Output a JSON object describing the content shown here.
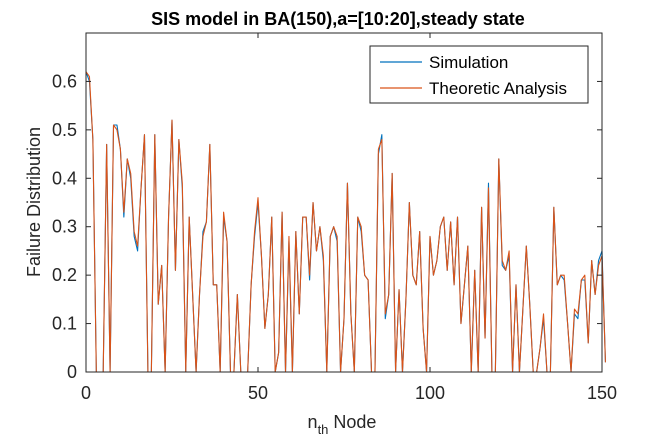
{
  "chart_data": {
    "type": "line",
    "title": "SIS model in BA(150),a=[10:20],steady state",
    "xlabel": {
      "base": "n",
      "sub": "th",
      "rest": " Node"
    },
    "ylabel": "Failure Distribution",
    "xlim": [
      0,
      150
    ],
    "ylim": [
      0,
      0.7
    ],
    "xticks": [
      0,
      50,
      100,
      150
    ],
    "yticks": [
      0,
      0.1,
      0.2,
      0.3,
      0.4,
      0.5,
      0.6
    ],
    "ytick_labels": [
      "0",
      "0.1",
      "0.2",
      "0.3",
      "0.4",
      "0.5",
      "0.6"
    ],
    "grid": false,
    "legend_position": "top-right",
    "series": [
      {
        "name": "Simulation",
        "color": "#0072BD",
        "values": [
          0.62,
          0.6,
          0.48,
          0.0,
          0.0,
          0.0,
          0.47,
          0.0,
          0.51,
          0.51,
          0.46,
          0.32,
          0.44,
          0.4,
          0.28,
          0.25,
          0.38,
          0.49,
          0.0,
          0.0,
          0.49,
          0.14,
          0.22,
          0.0,
          0.32,
          0.52,
          0.21,
          0.48,
          0.38,
          0.0,
          0.32,
          0.16,
          0.0,
          0.16,
          0.29,
          0.31,
          0.47,
          0.18,
          0.18,
          0.0,
          0.32,
          0.27,
          0.0,
          0.0,
          0.16,
          0.0,
          0.0,
          0.0,
          0.18,
          0.28,
          0.35,
          0.24,
          0.09,
          0.16,
          0.32,
          0.0,
          0.04,
          0.33,
          0.0,
          0.27,
          0.0,
          0.29,
          0.12,
          0.32,
          0.32,
          0.19,
          0.35,
          0.25,
          0.3,
          0.23,
          0.0,
          0.28,
          0.3,
          0.27,
          0.0,
          0.11,
          0.39,
          0.12,
          0.0,
          0.32,
          0.29,
          0.2,
          0.19,
          0.0,
          0.0,
          0.45,
          0.49,
          0.11,
          0.16,
          0.41,
          0.0,
          0.17,
          0.0,
          0.15,
          0.35,
          0.2,
          0.18,
          0.29,
          0.09,
          0.0,
          0.28,
          0.2,
          0.23,
          0.3,
          0.32,
          0.21,
          0.31,
          0.18,
          0.32,
          0.1,
          0.18,
          0.26,
          0.0,
          0.21,
          0.0,
          0.34,
          0.07,
          0.39,
          0.0,
          0.0,
          0.44,
          0.22,
          0.21,
          0.24,
          0.0,
          0.18,
          0.0,
          0.13,
          0.26,
          0.14,
          0.0,
          0.0,
          0.05,
          0.11,
          0.0,
          0.0,
          0.34,
          0.18,
          0.2,
          0.19,
          0.1,
          0.0,
          0.12,
          0.11,
          0.19,
          0.19,
          0.06,
          0.23,
          0.16,
          0.23,
          0.25,
          0.02
        ]
      },
      {
        "name": "Theoretic Analysis",
        "color": "#D95319",
        "values": [
          0.62,
          0.61,
          0.48,
          0.0,
          0.0,
          0.0,
          0.47,
          0.0,
          0.51,
          0.5,
          0.46,
          0.33,
          0.44,
          0.41,
          0.29,
          0.26,
          0.38,
          0.49,
          0.0,
          0.0,
          0.49,
          0.14,
          0.22,
          0.0,
          0.32,
          0.52,
          0.21,
          0.48,
          0.39,
          0.0,
          0.32,
          0.16,
          0.0,
          0.16,
          0.28,
          0.31,
          0.47,
          0.18,
          0.18,
          0.0,
          0.33,
          0.27,
          0.0,
          0.0,
          0.16,
          0.0,
          0.0,
          0.0,
          0.18,
          0.29,
          0.36,
          0.24,
          0.09,
          0.16,
          0.32,
          0.0,
          0.04,
          0.33,
          0.0,
          0.28,
          0.0,
          0.29,
          0.12,
          0.32,
          0.32,
          0.2,
          0.35,
          0.25,
          0.3,
          0.24,
          0.0,
          0.28,
          0.3,
          0.28,
          0.0,
          0.11,
          0.39,
          0.12,
          0.0,
          0.32,
          0.3,
          0.2,
          0.19,
          0.0,
          0.0,
          0.46,
          0.48,
          0.12,
          0.16,
          0.41,
          0.0,
          0.17,
          0.0,
          0.15,
          0.35,
          0.2,
          0.18,
          0.29,
          0.09,
          0.0,
          0.28,
          0.2,
          0.23,
          0.3,
          0.32,
          0.21,
          0.31,
          0.18,
          0.32,
          0.1,
          0.18,
          0.26,
          0.0,
          0.21,
          0.0,
          0.34,
          0.07,
          0.38,
          0.0,
          0.0,
          0.44,
          0.23,
          0.21,
          0.25,
          0.0,
          0.18,
          0.0,
          0.13,
          0.26,
          0.14,
          0.0,
          0.0,
          0.05,
          0.12,
          0.0,
          0.0,
          0.34,
          0.18,
          0.2,
          0.2,
          0.1,
          0.0,
          0.13,
          0.12,
          0.19,
          0.2,
          0.06,
          0.23,
          0.16,
          0.22,
          0.24,
          0.02
        ]
      }
    ]
  }
}
